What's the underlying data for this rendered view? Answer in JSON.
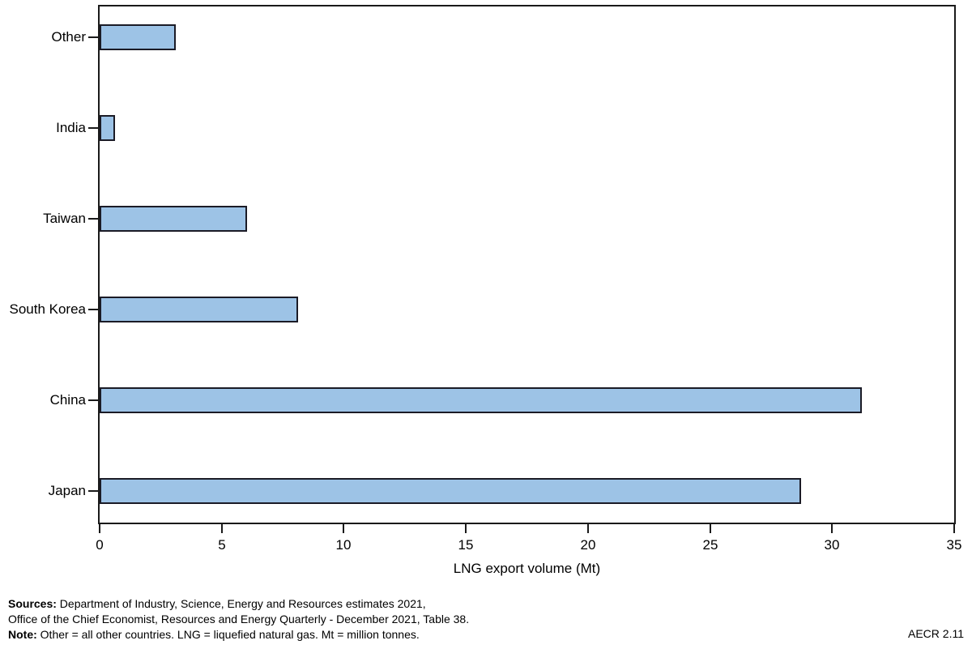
{
  "chart_data": {
    "type": "bar",
    "orientation": "horizontal",
    "title": "",
    "categories": [
      "Other",
      "India",
      "Taiwan",
      "South Korea",
      "China",
      "Japan"
    ],
    "values": [
      3.1,
      0.6,
      6.0,
      8.1,
      31.2,
      28.7
    ],
    "xlabel": "LNG export volume (Mt)",
    "ylabel": "",
    "xlim": [
      0,
      35
    ],
    "xticks": [
      0,
      5,
      10,
      15,
      20,
      25,
      30,
      35
    ],
    "grid": false,
    "legend": "none",
    "bar_fill_color": "#9DC3E6",
    "bar_border_color": "#1B1B26",
    "axis_color": "#1A1A1A"
  },
  "footer": {
    "sources_label": "Sources:",
    "sources_text": " Department of Industry, Science, Energy and Resources estimates 2021,",
    "sources_line2": "Office of the Chief Economist, Resources and Energy Quarterly - December 2021, Table 38.",
    "note_label": "Note:",
    "note_text": " Other = all other countries. LNG = liquefied natural gas. Mt = million tonnes.",
    "figure_ref": "AECR 2.11"
  }
}
